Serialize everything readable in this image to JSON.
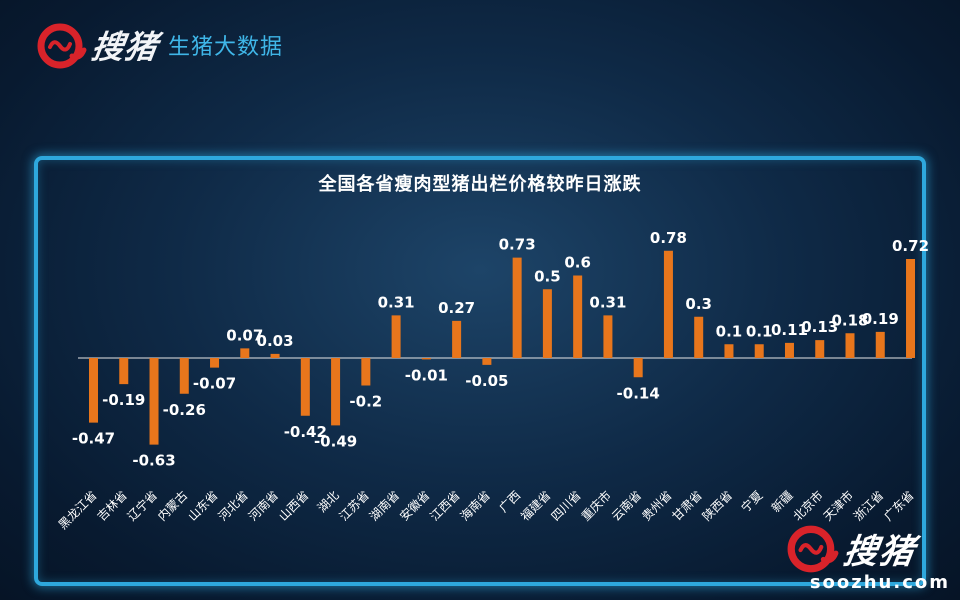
{
  "brand": {
    "name": "搜猪",
    "subtitle": "生猪大数据",
    "logo_icon": "pig-logo-icon",
    "accent": "#d8232a"
  },
  "watermark": {
    "name": "搜猪",
    "url": "soozhu.com"
  },
  "chart_data": {
    "type": "bar",
    "title": "全国各省瘦肉型猪出栏价格较昨日涨跌",
    "xlabel": "",
    "ylabel": "",
    "bar_color": "#e8761c",
    "categories": [
      "黑龙江省",
      "吉林省",
      "辽宁省",
      "内蒙古",
      "山东省",
      "河北省",
      "河南省",
      "山西省",
      "湖北",
      "江苏省",
      "湖南省",
      "安徽省",
      "江西省",
      "海南省",
      "广西",
      "福建省",
      "四川省",
      "重庆市",
      "云南省",
      "贵州省",
      "甘肃省",
      "陕西省",
      "宁夏",
      "新疆",
      "北京市",
      "天津市",
      "浙江省",
      "广东省"
    ],
    "values": [
      -0.47,
      -0.19,
      -0.63,
      -0.26,
      -0.07,
      0.07,
      0.03,
      -0.42,
      -0.49,
      -0.2,
      0.31,
      -0.01,
      0.27,
      -0.05,
      0.73,
      0.5,
      0.6,
      0.31,
      -0.14,
      0.78,
      0.3,
      0.1,
      0.1,
      0.11,
      0.13,
      0.18,
      0.19,
      0.72
    ],
    "labels": [
      "-0.47",
      "-0.19",
      "-0.63",
      "-0.26",
      "-0.07",
      "0.07",
      "0.03",
      "-0.42",
      "-0.49",
      "-0.2",
      "0.31",
      "-0.01",
      "0.27",
      "-0.05",
      "0.73",
      "0.5",
      "0.6",
      "0.31",
      "-0.14",
      "0.78",
      "0.3",
      "0.1",
      "0.1",
      "0.11",
      "0.13",
      "0.18",
      "0.19",
      "0.72"
    ],
    "grid": false,
    "legend": "none"
  }
}
